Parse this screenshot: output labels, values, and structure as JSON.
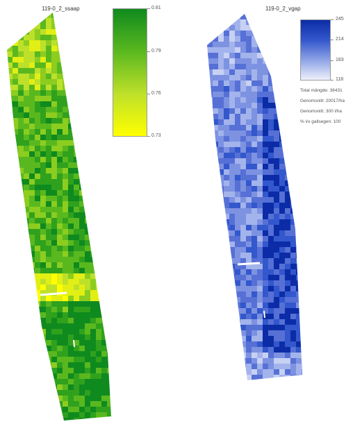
{
  "left_panel": {
    "title": "119-0_2_ssaap",
    "legend": {
      "ticks": [
        "0.81",
        "0.79",
        "0.76",
        "0.73"
      ],
      "gradient": [
        "#0f8a1e",
        "#5ab81f",
        "#bde02a",
        "#ffff00"
      ]
    },
    "palette": [
      "#ffff00",
      "#e2ef14",
      "#bde02a",
      "#8ccd1f",
      "#5ab81f",
      "#2fa11d",
      "#0f8a1e"
    ]
  },
  "right_panel": {
    "title": "119-0_2_vgap",
    "legend": {
      "ticks": [
        "245",
        "214",
        "183",
        "118"
      ],
      "gradient": [
        "#0b2ca6",
        "#3357cc",
        "#8ea3e6",
        "#eef1fb"
      ]
    },
    "stats": [
      "Total mängde: 36431",
      "Genomsnitt: 20017/ha",
      "Genomsnitt: 300 l/ha",
      "% i/o gallsegen: 100"
    ],
    "palette": [
      "#eef1fb",
      "#c7d1f3",
      "#a3b3ec",
      "#7d92e1",
      "#5670d6",
      "#3357cc",
      "#0b2ca6"
    ]
  }
}
